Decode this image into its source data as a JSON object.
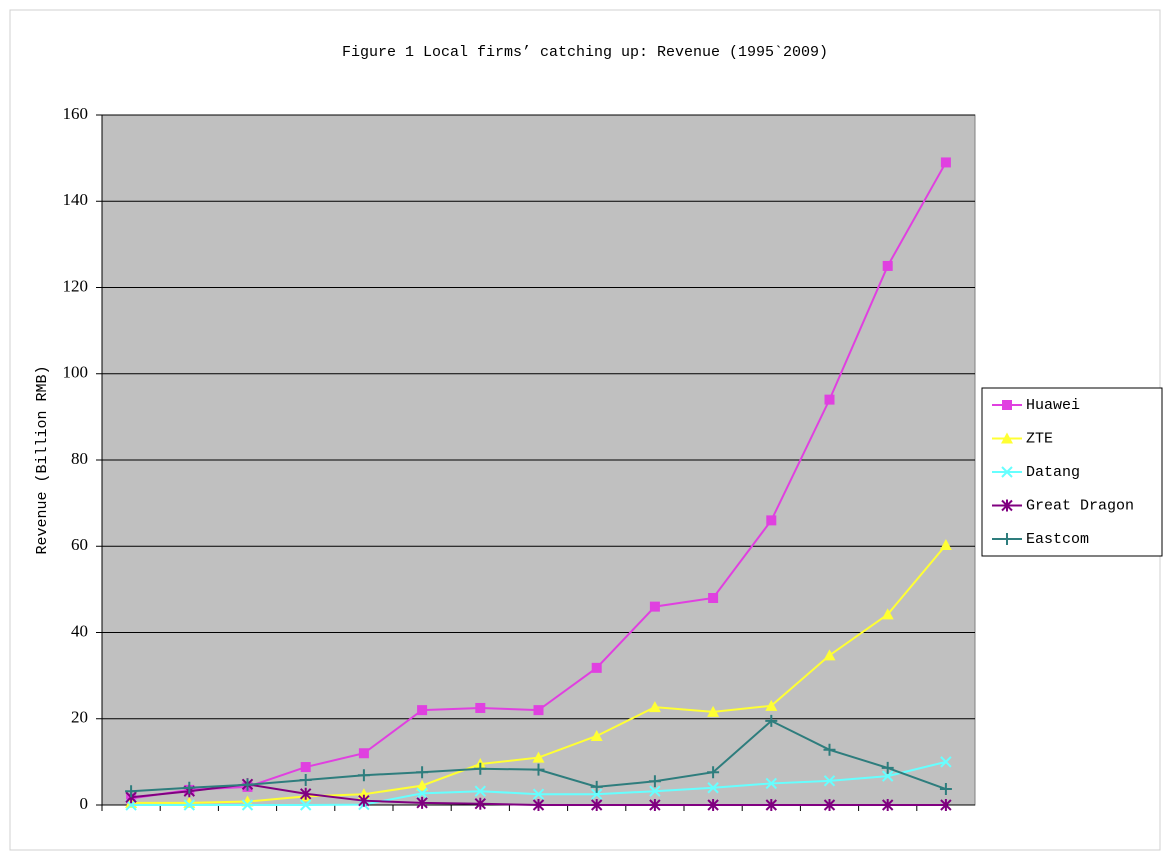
{
  "chart_data": {
    "type": "line",
    "title": "Figure 1 Local firms’ catching up: Revenue (1995`2009)",
    "ylabel": "Revenue (Billion RMB)",
    "categories": [
      null,
      null,
      null,
      null,
      null,
      null,
      null,
      null,
      null,
      null,
      null,
      null,
      null,
      null,
      null
    ],
    "series": [
      {
        "name": "Huawei",
        "color": "#e040e0",
        "marker": "square",
        "values": [
          1.5,
          3.5,
          4.2,
          8.8,
          12,
          22,
          22.5,
          22,
          31.8,
          46,
          48,
          66,
          94,
          125,
          149
        ]
      },
      {
        "name": "ZTE",
        "color": "#ffff33",
        "marker": "triangle",
        "values": [
          0.5,
          0.5,
          0.8,
          2,
          2.5,
          4.5,
          9.5,
          11,
          16,
          22.7,
          21.6,
          23,
          34.7,
          44.2,
          60.3
        ]
      },
      {
        "name": "Datang",
        "color": "#66ffff",
        "marker": "x",
        "values": [
          0,
          0,
          0,
          0,
          0.1,
          2.7,
          3.2,
          2.5,
          2.5,
          3.2,
          4,
          5,
          5.6,
          6.7,
          10
        ]
      },
      {
        "name": "Great Dragon",
        "color": "#800080",
        "marker": "asterisk",
        "values": [
          1.8,
          3.2,
          4.8,
          2.6,
          1,
          0.5,
          0.3,
          0,
          0,
          0,
          0,
          0,
          0,
          0,
          0
        ]
      },
      {
        "name": "Eastcom",
        "color": "#2e7d7d",
        "marker": "plus",
        "values": [
          3.2,
          4,
          4.7,
          5.8,
          6.9,
          7.6,
          8.4,
          8.2,
          4.2,
          5.5,
          7.6,
          19.5,
          12.8,
          8.6,
          3.7
        ]
      }
    ],
    "ylim": [
      0,
      160
    ],
    "yticks": [
      0,
      20,
      40,
      60,
      80,
      100,
      120,
      140,
      160
    ],
    "grid": true,
    "legend": "right"
  }
}
